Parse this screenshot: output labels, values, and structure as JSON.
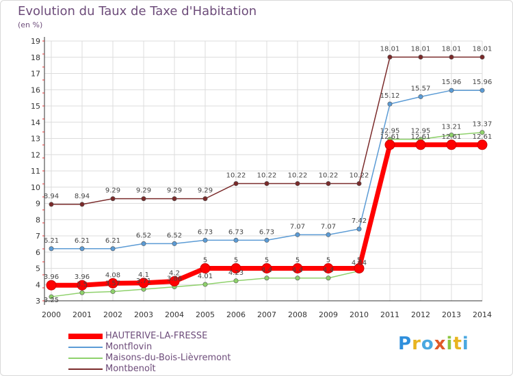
{
  "title": "Evolution du Taux de Taxe d'Habitation",
  "unit": "(en %)",
  "brand": {
    "letters": [
      "P",
      "r",
      "o",
      "x",
      "i",
      "t",
      "i"
    ],
    "colors": [
      "#2f8fdc",
      "#e8b420",
      "#4aa8e0",
      "#e05a28",
      "#8cc63f",
      "#e8b420",
      "#4aa8e0"
    ]
  },
  "chart_data": {
    "type": "line",
    "x": [
      "2000",
      "2001",
      "2002",
      "2003",
      "2004",
      "2005",
      "2006",
      "2007",
      "2008",
      "2009",
      "2010",
      "2011",
      "2012",
      "2013",
      "2014"
    ],
    "ylim": [
      3,
      19
    ],
    "yticks": [
      "3",
      "4",
      "5",
      "6",
      "7",
      "8",
      "9",
      "10",
      "11",
      "12",
      "13",
      "14",
      "15",
      "16",
      "17",
      "18",
      "19"
    ],
    "grid": true,
    "legend": "bottom-left",
    "series": [
      {
        "name": "HAUTERIVE-LA-FRESSE",
        "color": "#ff0000",
        "values": [
          3.96,
          3.96,
          4.08,
          4.1,
          4.2,
          5,
          5,
          5,
          5,
          5,
          5,
          12.61,
          12.61,
          12.61,
          12.61
        ],
        "labels": [
          "3.96",
          "3.96",
          "4.08",
          "4.1",
          "4.2",
          "5",
          "5",
          "5",
          "5",
          "5",
          "5",
          "12.61",
          "12.61",
          "12.61",
          "12.61"
        ]
      },
      {
        "name": "Montflovin",
        "color": "#5b9bd5",
        "values": [
          6.21,
          6.21,
          6.21,
          6.52,
          6.52,
          6.73,
          6.73,
          6.73,
          7.07,
          7.07,
          7.42,
          15.12,
          15.57,
          15.96,
          15.96
        ],
        "labels": [
          "6.21",
          "6.21",
          "6.21",
          "6.52",
          "6.52",
          "6.73",
          "6.73",
          "6.73",
          "7.07",
          "7.07",
          "7.42",
          "15.12",
          "15.57",
          "15.96",
          "15.96"
        ]
      },
      {
        "name": "Maisons-du-Bois-Lièvremont",
        "color": "#8ed16b",
        "values": [
          3.25,
          3.5,
          3.57,
          3.71,
          3.86,
          4.01,
          4.23,
          4.4,
          4.4,
          4.4,
          4.84,
          12.95,
          12.95,
          13.21,
          13.37
        ],
        "labels": [
          "3.25",
          "3.5",
          "3.57",
          "3.71",
          "3.86",
          "4.01",
          "4.23",
          "4.4",
          "4.4",
          "4.4",
          "4.84",
          "12.95",
          "12.95",
          "13.21",
          "13.37"
        ]
      },
      {
        "name": "Montbenoît",
        "color": "#7a2a2a",
        "values": [
          8.94,
          8.94,
          9.29,
          9.29,
          9.29,
          9.29,
          10.22,
          10.22,
          10.22,
          10.22,
          10.22,
          18.01,
          18.01,
          18.01,
          18.01
        ],
        "labels": [
          "8.94",
          "8.94",
          "9.29",
          "9.29",
          "9.29",
          "9.29",
          "10.22",
          "10.22",
          "10.22",
          "10.22",
          "10.22",
          "18.01",
          "18.01",
          "18.01",
          "18.01"
        ]
      }
    ]
  }
}
